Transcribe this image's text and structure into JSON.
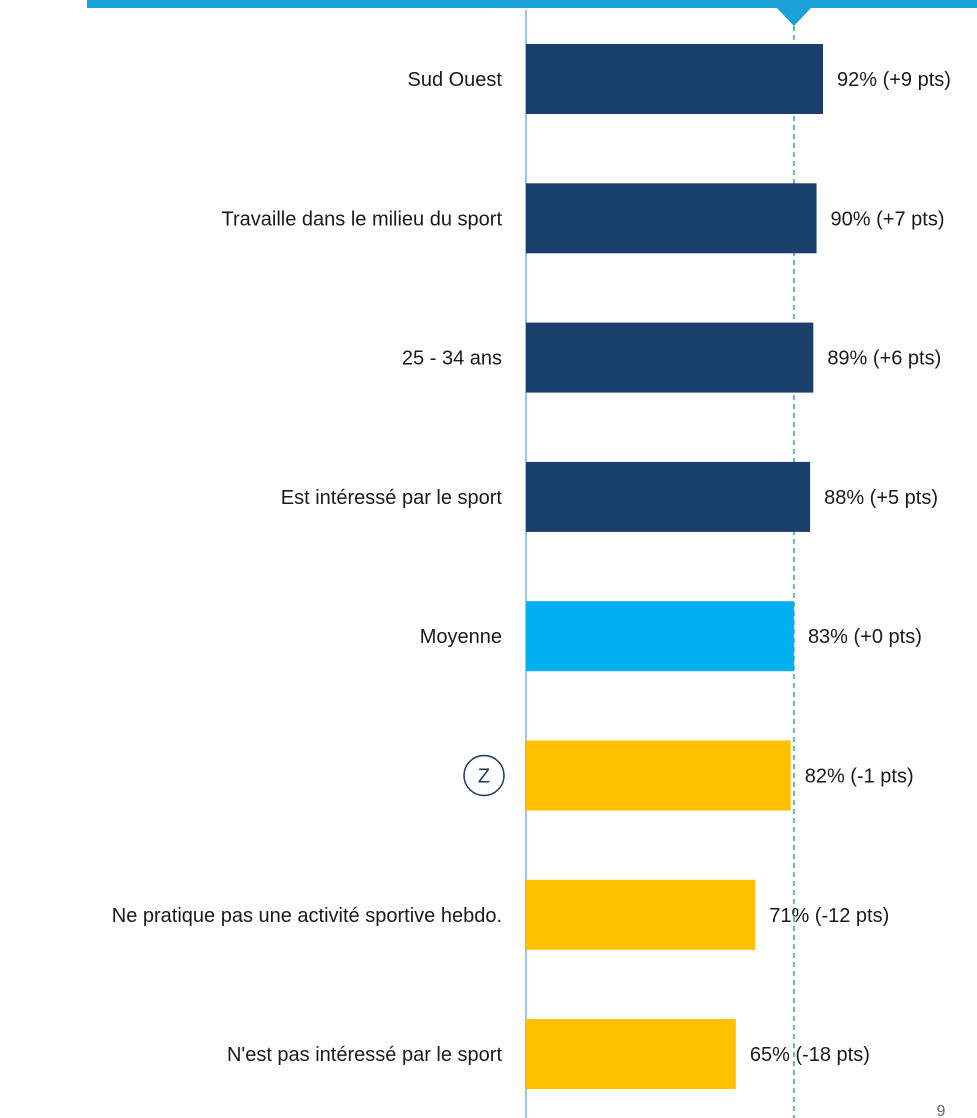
{
  "chart_data": {
    "type": "bar",
    "orientation": "horizontal",
    "title": "",
    "xlabel": "",
    "ylabel": "",
    "categories": [
      "Sud Ouest",
      "Travaille dans le milieu du sport",
      "25 - 34 ans",
      "Est intéressé par le sport",
      "Moyenne",
      "",
      "Ne pratique pas une activité sportive hebdo.",
      "N'est pas intéressé par le sport"
    ],
    "values": [
      92,
      90,
      89,
      88,
      83,
      82,
      71,
      65
    ],
    "data_labels": [
      "92% (+9 pts)",
      "90% (+7 pts)",
      "89% (+6 pts)",
      "88% (+5 pts)",
      "83% (+0 pts)",
      "82% (-1 pts)",
      "71% (-12 pts)",
      "65% (-18 pts)"
    ],
    "bar_colors": [
      "#1a3f6b",
      "#1a3f6b",
      "#1a3f6b",
      "#1a3f6b",
      "#00b0f0",
      "#ffc000",
      "#ffc000",
      "#ffc000"
    ],
    "badges": [
      null,
      null,
      null,
      null,
      null,
      "Z",
      null,
      null
    ],
    "reference_line": {
      "value": 83
    },
    "grid": false,
    "legend": "none"
  },
  "colors": {
    "top_rule": "#1ba0d8",
    "axis": "#9cc3e6",
    "reference": "#2e9cc8",
    "badge_border": "#1a3a5c"
  },
  "page_number": "9"
}
